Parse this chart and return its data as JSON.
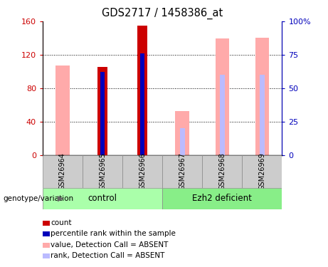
{
  "title": "GDS2717 / 1458386_at",
  "samples": [
    "GSM26964",
    "GSM26965",
    "GSM26966",
    "GSM26967",
    "GSM26968",
    "GSM26969"
  ],
  "count_values": [
    0,
    105,
    155,
    0,
    0,
    0
  ],
  "percentile_values": [
    0,
    62,
    76,
    0,
    0,
    0
  ],
  "value_absent": [
    67,
    0,
    0,
    33,
    87,
    88
  ],
  "rank_absent": [
    0,
    0,
    0,
    20,
    60,
    60
  ],
  "ylim_left": [
    0,
    160
  ],
  "ylim_right": [
    0,
    100
  ],
  "yticks_left": [
    0,
    40,
    80,
    120,
    160
  ],
  "ytick_labels_left": [
    "0",
    "40",
    "80",
    "120",
    "160"
  ],
  "yticks_right": [
    0,
    25,
    50,
    75,
    100
  ],
  "ytick_labels_right": [
    "0",
    "25",
    "50",
    "75",
    "100%"
  ],
  "color_count": "#cc0000",
  "color_percentile": "#0000bb",
  "color_value_absent": "#ffaaaa",
  "color_rank_absent": "#bbbbff",
  "color_group_bg_control": "#aaffaa",
  "color_group_bg_ezh2": "#88ee88",
  "color_xlabel_bg": "#cccccc",
  "group_label_control": "control",
  "group_label_ezh2": "Ezh2 deficient",
  "legend_items": [
    {
      "color": "#cc0000",
      "label": "count"
    },
    {
      "color": "#0000bb",
      "label": "percentile rank within the sample"
    },
    {
      "color": "#ffaaaa",
      "label": "value, Detection Call = ABSENT"
    },
    {
      "color": "#bbbbff",
      "label": "rank, Detection Call = ABSENT"
    }
  ],
  "annotation_label": "genotype/variation"
}
